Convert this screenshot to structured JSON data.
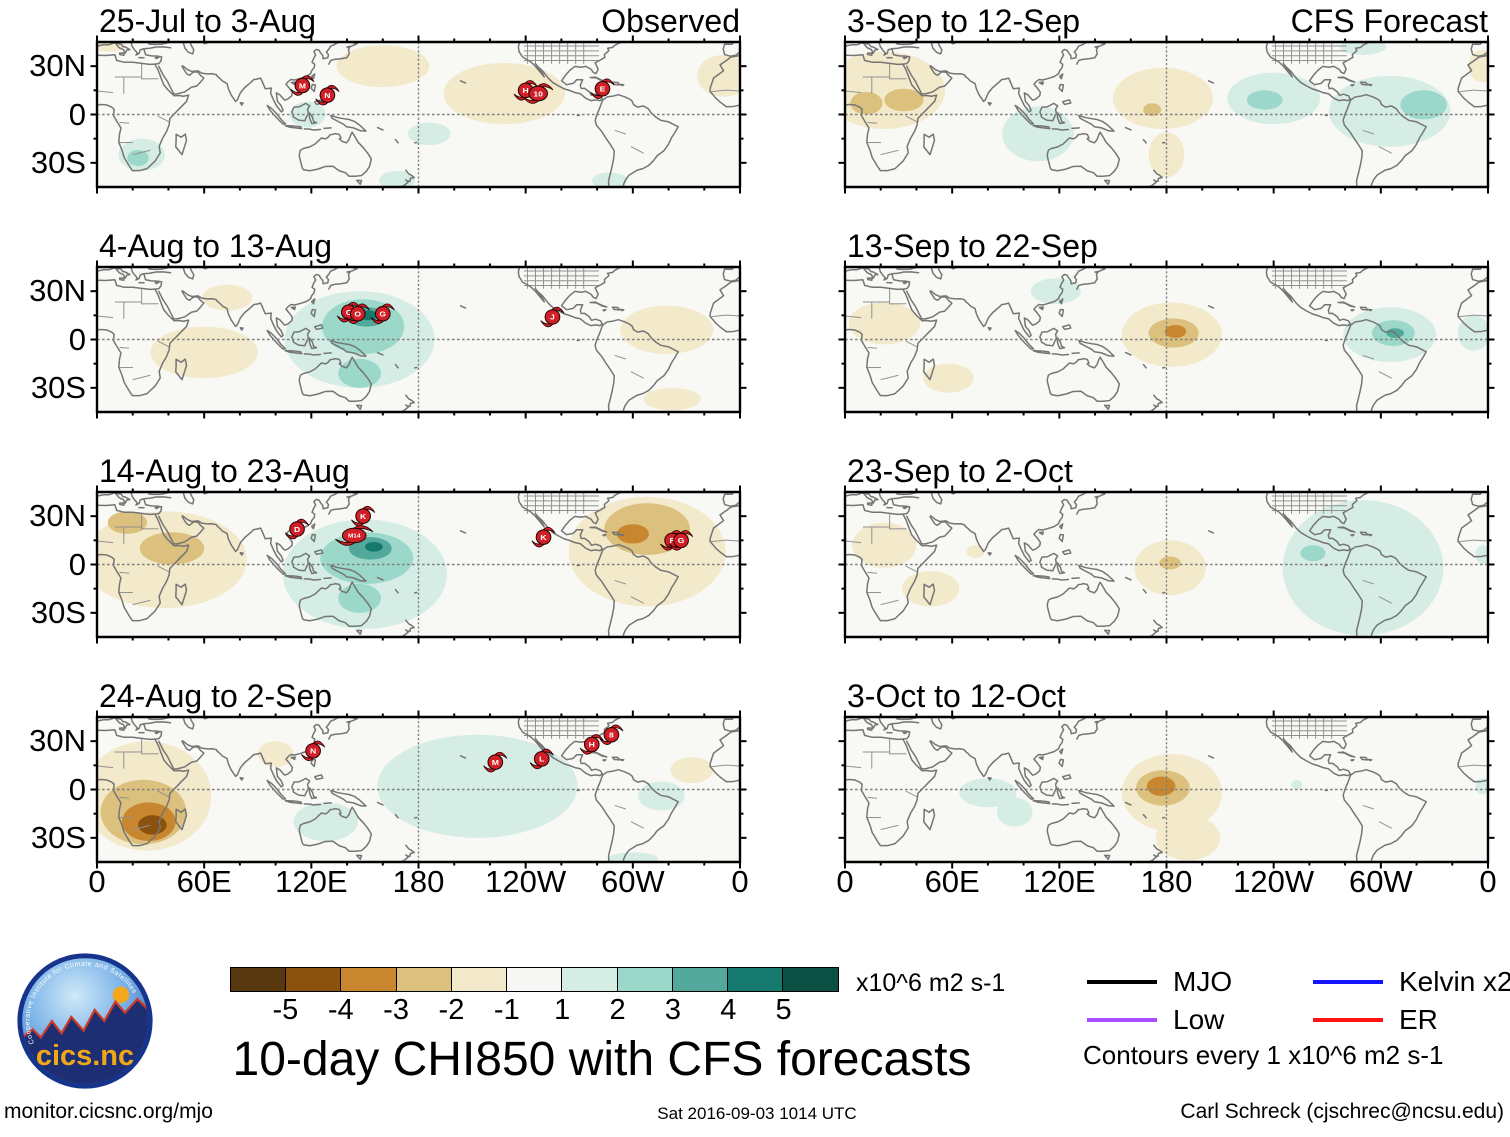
{
  "title": "10-day CHI850 with CFS forecasts",
  "footer": {
    "site": "monitor.cicsnc.org/mjo",
    "timestamp": "Sat 2016-09-03 1014 UTC",
    "credit": "Carl Schreck (cjschrec@ncsu.edu)"
  },
  "logo": {
    "text": "cics.nc",
    "arc_text": "Cooperative Institute for Climate and Satellites"
  },
  "chart_data": {
    "type": "heatmap",
    "description": "Eight 10-day mean CHI850 (velocity potential) anomaly world maps; left column observed, right column CFS forecast; shading in x10^6 m2 s-1; red cyclone markers show tropical storms",
    "map_extent": {
      "lon": [
        0,
        360
      ],
      "lat": [
        -45,
        45
      ]
    },
    "axes": {
      "x_ticks": [
        "0",
        "60E",
        "120E",
        "180",
        "120W",
        "60W",
        "0"
      ],
      "x_tick_lons": [
        0,
        60,
        120,
        180,
        240,
        300,
        360
      ],
      "y_ticks": [
        "30N",
        "0",
        "30S"
      ],
      "y_tick_lats": [
        30,
        0,
        -30
      ]
    },
    "colorbar": {
      "labels": [
        "-5",
        "-4",
        "-3",
        "-2",
        "-1",
        "1",
        "2",
        "3",
        "4",
        "5"
      ],
      "units": "x10^6 m2 s-1",
      "cell_colors": [
        "#58390f",
        "#8a520e",
        "#c8862f",
        "#dcc07e",
        "#f3e9cb",
        "#f7f7f6",
        "#d5ede5",
        "#9bd8ca",
        "#52a89a",
        "#15796d",
        "#0c4f43"
      ]
    },
    "level_colors": {
      "neg": [
        "#f3e9cb",
        "#dcc07e",
        "#c8862f",
        "#8a520e",
        "#58390f"
      ],
      "pos": [
        "#d5ede5",
        "#9bd8ca",
        "#52a89a",
        "#15796d",
        "#0c4f43"
      ]
    },
    "colors": {
      "map_bg": "#f8f8f5",
      "coast": "#757575",
      "border": "#919191",
      "grid_dash": "#808080",
      "storm": "#d01f26",
      "frame": "#000000"
    },
    "legend": {
      "items": [
        {
          "label": "MJO",
          "color": "#000000"
        },
        {
          "label": "Low",
          "color": "#a64dff"
        },
        {
          "label": "Kelvin x2",
          "color": "#1414ff"
        },
        {
          "label": "ER",
          "color": "#ff1414"
        }
      ],
      "note": "Contours every 1 x10^6 m2 s-1"
    },
    "anomaly_format": "[lon_center, lat_center, radius_lon_deg, radius_lat_deg, level]; negative level = brown shading, positive = teal; |level| maps to colorbar cell",
    "panels": [
      {
        "title": "25-Jul to 3-Aug",
        "corner": "Observed",
        "column": "observed",
        "anomalies": [
          [
            6,
            43,
            10,
            4,
            -1
          ],
          [
            160,
            30,
            26,
            13,
            -1
          ],
          [
            228,
            13,
            34,
            19,
            -1
          ],
          [
            351,
            24,
            15,
            13,
            -1
          ],
          [
            25,
            -25,
            13,
            10,
            1
          ],
          [
            23,
            -27,
            6,
            5,
            2
          ],
          [
            118,
            0,
            10,
            8,
            1
          ],
          [
            186,
            -12,
            12,
            7,
            1
          ],
          [
            168,
            -41,
            10,
            6,
            1
          ],
          [
            287,
            -41,
            10,
            5,
            1
          ]
        ],
        "storms": [
          {
            "label": "M",
            "lon": 115,
            "lat": 18
          },
          {
            "label": "N",
            "lon": 129,
            "lat": 12
          },
          {
            "label": "H",
            "lon": 240,
            "lat": 15
          },
          {
            "label": "10",
            "lon": 247,
            "lat": 13
          },
          {
            "label": "E",
            "lon": 283,
            "lat": 16
          }
        ]
      },
      {
        "title": "4-Aug to 13-Aug",
        "corner": "",
        "column": "observed",
        "anomalies": [
          [
            60,
            -8,
            30,
            16,
            -1
          ],
          [
            73,
            26,
            14,
            8,
            -1
          ],
          [
            319,
            6,
            26,
            15,
            -1
          ],
          [
            322,
            -37,
            16,
            7,
            -1
          ],
          [
            147,
            0,
            42,
            30,
            1
          ],
          [
            149,
            8,
            23,
            17,
            2
          ],
          [
            147,
            -21,
            12,
            9,
            2
          ],
          [
            151,
            14,
            11,
            6,
            3
          ],
          [
            152,
            15,
            5,
            3,
            4
          ]
        ],
        "storms": [
          {
            "label": "C",
            "lon": 141,
            "lat": 17
          },
          {
            "label": "O",
            "lon": 146,
            "lat": 16
          },
          {
            "label": "G",
            "lon": 160,
            "lat": 16
          },
          {
            "label": "J",
            "lon": 255,
            "lat": 14
          }
        ]
      },
      {
        "title": "14-Aug to 23-Aug",
        "corner": "",
        "column": "observed",
        "anomalies": [
          [
            38,
            3,
            46,
            30,
            -1
          ],
          [
            42,
            10,
            18,
            10,
            -2
          ],
          [
            17,
            26,
            11,
            7,
            -2
          ],
          [
            150,
            -6,
            46,
            34,
            1
          ],
          [
            151,
            4,
            26,
            16,
            2
          ],
          [
            147,
            -21,
            12,
            9,
            2
          ],
          [
            153,
            10,
            12,
            7,
            3
          ],
          [
            155,
            11,
            5,
            3,
            4
          ],
          [
            308,
            8,
            44,
            34,
            -1
          ],
          [
            308,
            22,
            24,
            16,
            -2
          ],
          [
            300,
            19,
            9,
            6,
            -3
          ]
        ],
        "storms": [
          {
            "label": "D",
            "lon": 112,
            "lat": 22
          },
          {
            "label": "K",
            "lon": 149,
            "lat": 30
          },
          {
            "label": "M14",
            "lon": 144,
            "lat": 18
          },
          {
            "label": "K",
            "lon": 250,
            "lat": 17
          },
          {
            "label": "F",
            "lon": 322,
            "lat": 15
          },
          {
            "label": "G",
            "lon": 327,
            "lat": 15
          }
        ]
      },
      {
        "title": "24-Aug to 2-Sep",
        "corner": "",
        "column": "observed",
        "anomalies": [
          [
            28,
            -4,
            36,
            34,
            -1
          ],
          [
            26,
            -14,
            24,
            20,
            -2
          ],
          [
            29,
            -20,
            15,
            12,
            -3
          ],
          [
            31,
            -22,
            8,
            6,
            -4
          ],
          [
            100,
            22,
            10,
            8,
            -1
          ],
          [
            333,
            12,
            12,
            8,
            -1
          ],
          [
            213,
            2,
            56,
            32,
            1
          ],
          [
            128,
            -20,
            18,
            12,
            1
          ],
          [
            316,
            -4,
            13,
            9,
            1
          ],
          [
            300,
            -43,
            14,
            4,
            1
          ]
        ],
        "storms": [
          {
            "label": "N",
            "lon": 121,
            "lat": 24
          },
          {
            "label": "M",
            "lon": 223,
            "lat": 17
          },
          {
            "label": "L",
            "lon": 249,
            "lat": 19
          },
          {
            "label": "H",
            "lon": 277,
            "lat": 28
          },
          {
            "label": "8",
            "lon": 288,
            "lat": 34
          }
        ]
      },
      {
        "title": "3-Sep to 12-Sep",
        "corner": "CFS Forecast",
        "column": "forecast",
        "anomalies": [
          [
            22,
            15,
            34,
            24,
            -1
          ],
          [
            12,
            7,
            9,
            7,
            -2
          ],
          [
            33,
            9,
            11,
            7,
            -2
          ],
          [
            357,
            30,
            8,
            10,
            -1
          ],
          [
            178,
            10,
            28,
            19,
            -1
          ],
          [
            180,
            -25,
            10,
            14,
            -1
          ],
          [
            172,
            3,
            5,
            4,
            -2
          ],
          [
            108,
            -12,
            20,
            17,
            1
          ],
          [
            240,
            10,
            26,
            16,
            1
          ],
          [
            235,
            9,
            10,
            6,
            2
          ],
          [
            305,
            2,
            34,
            22,
            1
          ],
          [
            324,
            6,
            13,
            9,
            2
          ],
          [
            290,
            42,
            13,
            5,
            1
          ]
        ],
        "storms": []
      },
      {
        "title": "13-Sep to 22-Sep",
        "corner": "",
        "column": "forecast",
        "anomalies": [
          [
            22,
            10,
            20,
            13,
            -1
          ],
          [
            58,
            -24,
            14,
            9,
            -1
          ],
          [
            183,
            3,
            28,
            20,
            -1
          ],
          [
            184,
            4,
            14,
            9,
            -2
          ],
          [
            185,
            5,
            6,
            4,
            -3
          ],
          [
            118,
            30,
            14,
            8,
            1
          ],
          [
            305,
            3,
            26,
            17,
            1
          ],
          [
            307,
            4,
            12,
            8,
            2
          ],
          [
            308,
            4,
            5,
            3,
            3
          ],
          [
            352,
            4,
            9,
            11,
            1
          ]
        ],
        "storms": []
      },
      {
        "title": "23-Sep to 2-Oct",
        "corner": "",
        "column": "forecast",
        "anomalies": [
          [
            22,
            12,
            18,
            14,
            -1
          ],
          [
            48,
            -15,
            16,
            11,
            -1
          ],
          [
            73,
            8,
            5,
            4,
            -1
          ],
          [
            182,
            -2,
            20,
            17,
            -1
          ],
          [
            182,
            1,
            6,
            4,
            -2
          ],
          [
            290,
            -2,
            45,
            42,
            1
          ],
          [
            262,
            7,
            7,
            5,
            2
          ],
          [
            357,
            6,
            4,
            6,
            1
          ]
        ],
        "storms": []
      },
      {
        "title": "3-Oct to 12-Oct",
        "corner": "",
        "column": "forecast",
        "anomalies": [
          [
            183,
            -2,
            28,
            24,
            -1
          ],
          [
            192,
            -30,
            18,
            14,
            -1
          ],
          [
            178,
            1,
            15,
            11,
            -2
          ],
          [
            177,
            2,
            8,
            6,
            -3
          ],
          [
            80,
            -2,
            16,
            9,
            1
          ],
          [
            95,
            -14,
            10,
            9,
            1
          ],
          [
            253,
            3,
            3,
            3,
            1
          ],
          [
            357,
            2,
            4,
            5,
            1
          ]
        ],
        "storms": []
      }
    ]
  }
}
